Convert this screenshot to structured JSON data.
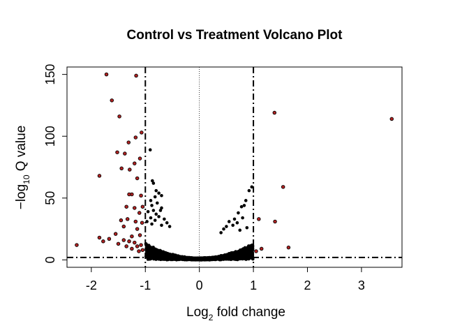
{
  "chart_data": {
    "type": "scatter",
    "title": "Control vs Treatment Volcano Plot",
    "xlabel": {
      "prefix": "Log",
      "sub": "2",
      "suffix": " fold change"
    },
    "ylabel": {
      "prefix": "−log",
      "sub": "10",
      "suffix": " Q value"
    },
    "xlim": [
      -2.45,
      3.75
    ],
    "ylim": [
      -6,
      156
    ],
    "x_ticks": [
      -2,
      -1,
      0,
      1,
      2,
      3
    ],
    "x_tick_labels": [
      "-2",
      "-1",
      "0",
      "1",
      "2",
      "3"
    ],
    "y_ticks": [
      0,
      50,
      100,
      150
    ],
    "y_tick_labels": [
      "0",
      "50",
      "100",
      "150"
    ],
    "grid": false,
    "legend": "none",
    "thresholds": {
      "fold_change": [
        -1,
        1
      ],
      "q_value": 2,
      "center": 0
    },
    "colors": {
      "significant": "#b22222",
      "other": "#000000"
    },
    "significant_points": [
      [
        -1.72,
        150
      ],
      [
        -1.17,
        149
      ],
      [
        -1.62,
        129
      ],
      [
        -1.48,
        116
      ],
      [
        -1.07,
        103
      ],
      [
        -1.18,
        99
      ],
      [
        -1.31,
        95
      ],
      [
        -1.52,
        87
      ],
      [
        -1.38,
        86
      ],
      [
        -1.1,
        82
      ],
      [
        -1.2,
        78
      ],
      [
        -1.44,
        74
      ],
      [
        -1.29,
        73
      ],
      [
        -1.85,
        68
      ],
      [
        -1.15,
        66
      ],
      [
        -1.25,
        53
      ],
      [
        -1.3,
        53
      ],
      [
        -1.08,
        52
      ],
      [
        -1.35,
        43
      ],
      [
        -1.05,
        43
      ],
      [
        -1.2,
        42
      ],
      [
        -1.11,
        38
      ],
      [
        -1.33,
        33
      ],
      [
        -1.45,
        32
      ],
      [
        -1.18,
        31
      ],
      [
        -1.06,
        30
      ],
      [
        -1.4,
        27
      ],
      [
        -1.15,
        25
      ],
      [
        -1.55,
        21
      ],
      [
        -1.1,
        20
      ],
      [
        -1.25,
        19
      ],
      [
        -1.85,
        18
      ],
      [
        -1.67,
        17
      ],
      [
        -1.4,
        16
      ],
      [
        -1.78,
        15
      ],
      [
        -1.3,
        15
      ],
      [
        -1.2,
        14
      ],
      [
        -1.5,
        13
      ],
      [
        -1.08,
        12
      ],
      [
        -1.35,
        11
      ],
      [
        -1.15,
        11
      ],
      [
        -1.25,
        9
      ],
      [
        -1.05,
        8
      ],
      [
        -2.27,
        12
      ],
      [
        -1.12,
        7
      ],
      [
        1.39,
        119
      ],
      [
        3.56,
        114
      ],
      [
        1.55,
        59
      ],
      [
        1.1,
        33
      ],
      [
        1.4,
        31
      ],
      [
        1.65,
        10
      ],
      [
        1.15,
        9
      ],
      [
        1.05,
        7
      ]
    ],
    "black_upper_points": [
      [
        -0.91,
        89
      ],
      [
        -0.87,
        64
      ],
      [
        -0.85,
        62
      ],
      [
        -0.8,
        56
      ],
      [
        -0.75,
        54
      ],
      [
        -0.7,
        52
      ],
      [
        -0.82,
        51
      ],
      [
        -0.9,
        48
      ],
      [
        -0.78,
        46
      ],
      [
        -0.88,
        44
      ],
      [
        -0.7,
        42
      ],
      [
        -0.85,
        40
      ],
      [
        -0.72,
        40
      ],
      [
        -0.95,
        39
      ],
      [
        -0.8,
        37
      ],
      [
        -0.75,
        35
      ],
      [
        -0.9,
        34
      ],
      [
        -0.65,
        33
      ],
      [
        -0.82,
        32
      ],
      [
        -0.97,
        31
      ],
      [
        -0.6,
        30
      ],
      [
        -0.88,
        29
      ],
      [
        -0.7,
        28
      ],
      [
        -0.55,
        27
      ],
      [
        0.97,
        59
      ],
      [
        0.92,
        56
      ],
      [
        0.86,
        48
      ],
      [
        0.83,
        44
      ],
      [
        0.78,
        43
      ],
      [
        0.72,
        38
      ],
      [
        0.8,
        34
      ],
      [
        0.65,
        33
      ],
      [
        0.55,
        31
      ],
      [
        0.7,
        30
      ],
      [
        0.62,
        28
      ],
      [
        0.5,
        27
      ],
      [
        0.88,
        26
      ],
      [
        0.45,
        25
      ],
      [
        0.75,
        24
      ],
      [
        0.4,
        22
      ]
    ],
    "bulk_density": {
      "spread": 0.11,
      "scale": 20,
      "count": 2600
    }
  }
}
